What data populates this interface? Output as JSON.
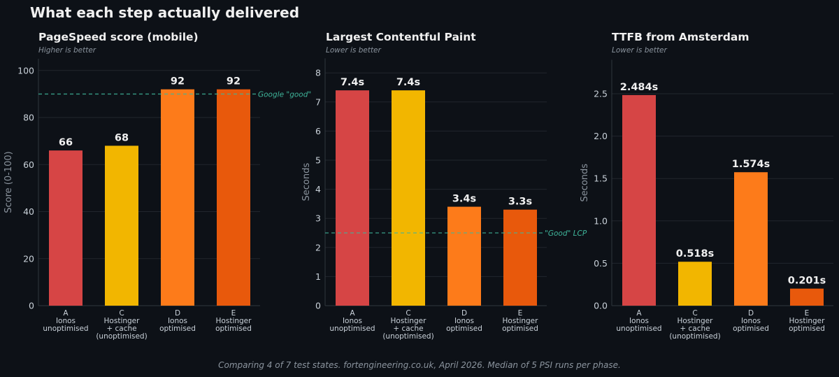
{
  "title": "What each step actually delivered",
  "footer": "Comparing 4 of 7 test states. fortengineering.co.uk, April 2026. Median of 5 PSI runs per phase.",
  "colors": {
    "A": "#d64545",
    "C": "#f2b600",
    "D": "#fd7b1a",
    "E": "#e8590c",
    "reference": "#3fb59a",
    "background": "#0d1117",
    "grid": "#21262d"
  },
  "chart_data": [
    {
      "type": "bar",
      "title": "PageSpeed score (mobile)",
      "subtitle": "Higher is better",
      "ylabel": "Score (0-100)",
      "ylim": [
        0,
        105
      ],
      "yticks": [
        0,
        20,
        40,
        60,
        80,
        100
      ],
      "ytick_labels": [
        "0",
        "20",
        "40",
        "60",
        "80",
        "100"
      ],
      "grid": true,
      "categories": [
        [
          "A",
          "Ionos",
          "unoptimised"
        ],
        [
          "C",
          "Hostinger",
          "+ cache",
          "(unoptimised)"
        ],
        [
          "D",
          "Ionos",
          "optimised"
        ],
        [
          "E",
          "Hostinger",
          "optimised"
        ]
      ],
      "values": [
        66,
        68,
        92,
        92
      ],
      "data_labels": [
        "66",
        "68",
        "92",
        "92"
      ],
      "bar_colors": [
        "#d64545",
        "#f2b600",
        "#fd7b1a",
        "#e8590c"
      ],
      "reference_line": {
        "value": 90,
        "label": "Google \"good\""
      }
    },
    {
      "type": "bar",
      "title": "Largest Contentful Paint",
      "subtitle": "Lower is better",
      "ylabel": "Seconds",
      "ylim": [
        0,
        8.5
      ],
      "yticks": [
        0,
        1,
        2,
        3,
        4,
        5,
        6,
        7,
        8
      ],
      "ytick_labels": [
        "0",
        "1",
        "2",
        "3",
        "4",
        "5",
        "6",
        "7",
        "8"
      ],
      "grid": true,
      "categories": [
        [
          "A",
          "Ionos",
          "unoptimised"
        ],
        [
          "C",
          "Hostinger",
          "+ cache",
          "(unoptimised)"
        ],
        [
          "D",
          "Ionos",
          "optimised"
        ],
        [
          "E",
          "Hostinger",
          "optimised"
        ]
      ],
      "values": [
        7.4,
        7.4,
        3.4,
        3.3
      ],
      "data_labels": [
        "7.4s",
        "7.4s",
        "3.4s",
        "3.3s"
      ],
      "bar_colors": [
        "#d64545",
        "#f2b600",
        "#fd7b1a",
        "#e8590c"
      ],
      "reference_line": {
        "value": 2.5,
        "label": "\"Good\" LCP"
      }
    },
    {
      "type": "bar",
      "title": "TTFB from Amsterdam",
      "subtitle": "Lower is better",
      "ylabel": "Seconds",
      "ylim": [
        0,
        2.9
      ],
      "yticks": [
        0,
        0.5,
        1,
        1.5,
        2,
        2.5
      ],
      "ytick_labels": [
        "0.0",
        "0.5",
        "1.0",
        "1.5",
        "2.0",
        "2.5"
      ],
      "grid": true,
      "categories": [
        [
          "A",
          "Ionos",
          "unoptimised"
        ],
        [
          "C",
          "Hostinger",
          "+ cache",
          "(unoptimised)"
        ],
        [
          "D",
          "Ionos",
          "optimised"
        ],
        [
          "E",
          "Hostinger",
          "optimised"
        ]
      ],
      "values": [
        2.484,
        0.518,
        1.574,
        0.201
      ],
      "data_labels": [
        "2.484s",
        "0.518s",
        "1.574s",
        "0.201s"
      ],
      "bar_colors": [
        "#d64545",
        "#f2b600",
        "#fd7b1a",
        "#e8590c"
      ]
    }
  ]
}
